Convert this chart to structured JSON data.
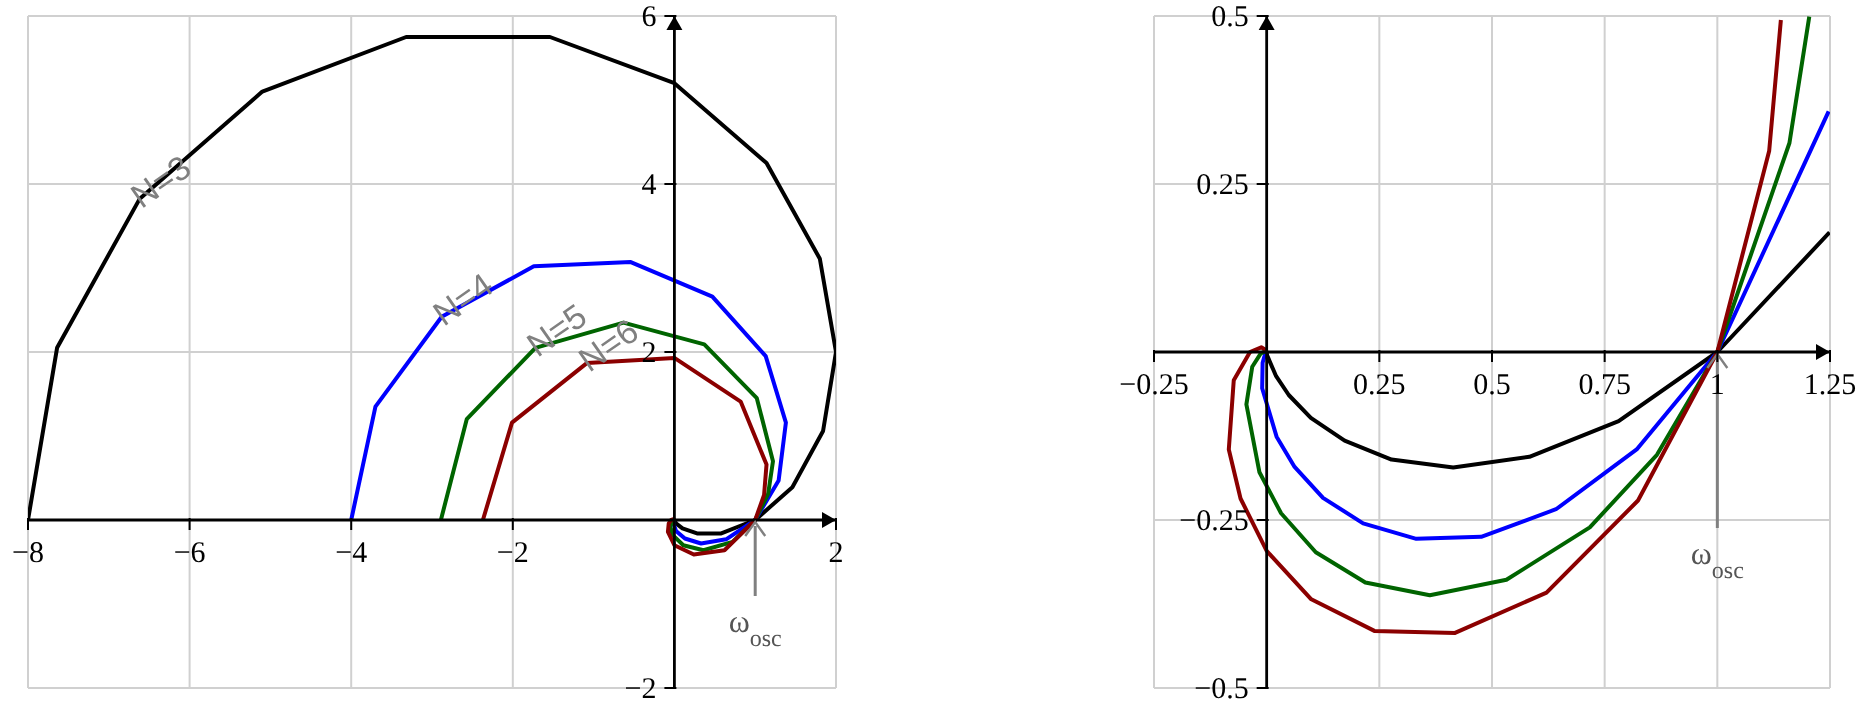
{
  "chart_data": [
    {
      "type": "line",
      "xlim": [
        -8,
        2
      ],
      "ylim": [
        -2,
        6
      ],
      "xticks": [
        -8,
        -6,
        -4,
        -2,
        2
      ],
      "yticks": [
        -2,
        2,
        4,
        6
      ],
      "grid": true,
      "annotations": [
        {
          "text": "ω$_{osc}$",
          "x": 1,
          "y": 0
        }
      ],
      "series": [
        {
          "name": "N=3",
          "color": "#000000",
          "x": [
            -8,
            -7.64,
            -6.62,
            -5.1,
            -3.32,
            -1.54,
            0,
            1.14,
            1.8,
            2,
            1.84,
            1.46,
            1,
            0.58,
            0.28,
            0.1,
            0.02,
            0
          ],
          "values": [
            0,
            2.05,
            3.82,
            5.1,
            5.75,
            5.75,
            5.2,
            4.25,
            3.11,
            2,
            1.06,
            0.39,
            0,
            -0.16,
            -0.16,
            -0.1,
            -0.04,
            0
          ]
        },
        {
          "name": "N=4",
          "color": "#0000ff",
          "x": [
            -4,
            -3.7,
            -2.88,
            -1.74,
            -0.54,
            0.47,
            1.13,
            1.38,
            1.29,
            1,
            0.64,
            0.33,
            0.13,
            0.02,
            -0.01,
            -0.01,
            0
          ],
          "values": [
            0,
            1.35,
            2.42,
            3.02,
            3.07,
            2.66,
            1.95,
            1.16,
            0.47,
            0,
            -0.23,
            -0.28,
            -0.22,
            -0.13,
            -0.05,
            -0.02,
            0
          ]
        },
        {
          "name": "N=5",
          "color": "#006400",
          "x": [
            -2.89,
            -2.57,
            -1.72,
            -0.63,
            0.37,
            1.02,
            1.22,
            1.16,
            1,
            0.72,
            0.36,
            0.11,
            -0.02,
            -0.05,
            -0.03,
            -0.01,
            0
          ],
          "values": [
            0,
            1.2,
            2.05,
            2.35,
            2.09,
            1.45,
            0.7,
            0.31,
            0,
            -0.26,
            -0.36,
            -0.3,
            -0.18,
            -0.08,
            -0.02,
            0,
            0
          ]
        },
        {
          "name": "N=6",
          "color": "#8b0000",
          "x": [
            -2.37,
            -2.01,
            -1.08,
            0,
            0.82,
            1.14,
            1.11,
            1,
            0.62,
            0.24,
            0,
            -0.08,
            -0.07,
            -0.04,
            -0.01,
            0
          ],
          "values": [
            0,
            1.16,
            1.87,
            1.93,
            1.41,
            0.66,
            0.3,
            0,
            -0.36,
            -0.41,
            -0.3,
            -0.14,
            -0.04,
            0,
            0.01,
            0
          ]
        }
      ]
    },
    {
      "type": "line",
      "xlim": [
        -0.25,
        1.25
      ],
      "ylim": [
        -0.5,
        0.5
      ],
      "xticks": [
        -0.25,
        0.25,
        0.5,
        0.75,
        1,
        1.25
      ],
      "yticks": [
        -0.5,
        -0.25,
        0.25,
        0.5
      ],
      "grid": true,
      "annotations": [
        {
          "text": "ω$_{osc}$",
          "x": 1,
          "y": 0
        }
      ],
      "series": [
        {
          "color": "#000000",
          "x": [
            1.249,
            1,
            0.781,
            0.583,
            0.414,
            0.277,
            0.173,
            0.098,
            0.049,
            0.021,
            0.001,
            0
          ],
          "values": [
            0.178,
            0,
            -0.103,
            -0.156,
            -0.172,
            -0.16,
            -0.132,
            -0.098,
            -0.064,
            -0.036,
            -0.005,
            0
          ]
        },
        {
          "color": "#0000ff",
          "x": [
            1.247,
            1,
            0.821,
            0.642,
            0.476,
            0.332,
            0.214,
            0.125,
            0.062,
            0.022,
            -0.01,
            -0.009,
            -0.003,
            0
          ],
          "values": [
            0.358,
            0,
            -0.145,
            -0.234,
            -0.275,
            -0.278,
            -0.255,
            -0.217,
            -0.171,
            -0.126,
            -0.054,
            -0.016,
            -0.002,
            0
          ]
        },
        {
          "color": "#006400",
          "x": [
            1.204,
            1.16,
            1,
            0.866,
            0.717,
            0.532,
            0.362,
            0.219,
            0.109,
            0.032,
            -0.016,
            -0.045,
            -0.032,
            -0.013,
            -0.003,
            0
          ],
          "values": [
            0.499,
            0.311,
            0,
            -0.153,
            -0.261,
            -0.339,
            -0.362,
            -0.343,
            -0.298,
            -0.24,
            -0.179,
            -0.078,
            -0.022,
            -0.002,
            0.001,
            0
          ]
        },
        {
          "color": "#8b0000",
          "x": [
            1.141,
            1.115,
            1,
            0.824,
            0.621,
            0.418,
            0.239,
            0.099,
            0,
            -0.058,
            -0.084,
            -0.073,
            -0.037,
            -0.012,
            -0.002,
            0
          ],
          "values": [
            0.494,
            0.299,
            0,
            -0.221,
            -0.358,
            -0.418,
            -0.415,
            -0.368,
            -0.296,
            -0.218,
            -0.145,
            -0.042,
            0,
            0.007,
            0.003,
            0
          ]
        }
      ]
    }
  ]
}
